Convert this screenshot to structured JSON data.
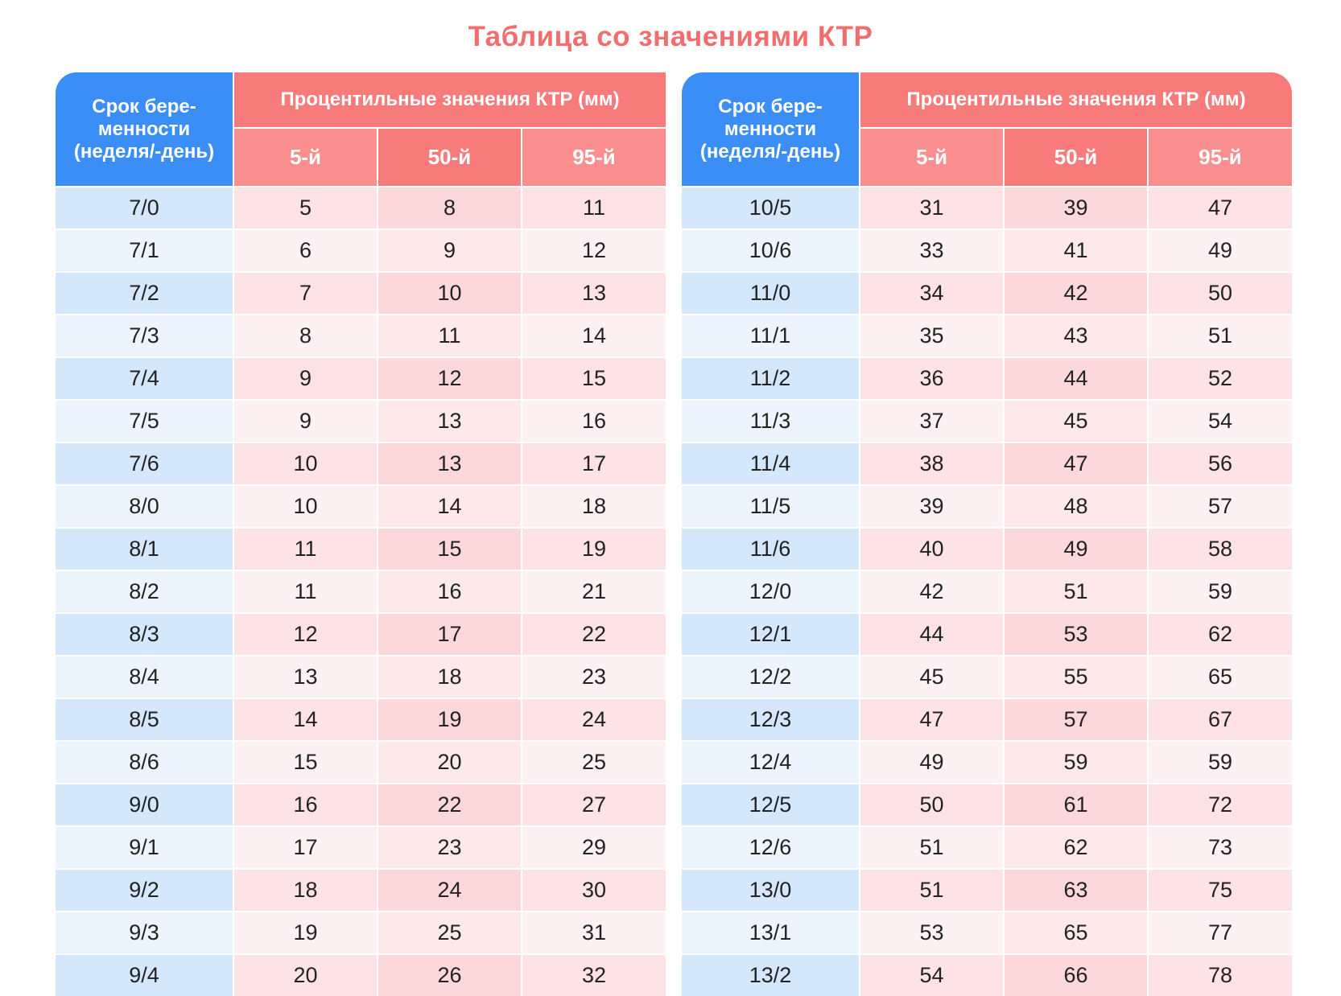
{
  "title": "Таблица со значениями КТР",
  "header": {
    "term": "Срок бере-менности (неделя/-день)",
    "percentiles": "Процентильные значения КТР (мм)",
    "p5": "5-й",
    "p50": "50-й",
    "p95": "95-й"
  },
  "colors": {
    "blue_header": "#3a8ef6",
    "red_header": "#f77b7b",
    "title": "#f26d6d"
  },
  "tables": [
    {
      "rows": [
        [
          "7/0",
          "5",
          "8",
          "11"
        ],
        [
          "7/1",
          "6",
          "9",
          "12"
        ],
        [
          "7/2",
          "7",
          "10",
          "13"
        ],
        [
          "7/3",
          "8",
          "11",
          "14"
        ],
        [
          "7/4",
          "9",
          "12",
          "15"
        ],
        [
          "7/5",
          "9",
          "13",
          "16"
        ],
        [
          "7/6",
          "10",
          "13",
          "17"
        ],
        [
          "8/0",
          "10",
          "14",
          "18"
        ],
        [
          "8/1",
          "11",
          "15",
          "19"
        ],
        [
          "8/2",
          "11",
          "16",
          "21"
        ],
        [
          "8/3",
          "12",
          "17",
          "22"
        ],
        [
          "8/4",
          "13",
          "18",
          "23"
        ],
        [
          "8/5",
          "14",
          "19",
          "24"
        ],
        [
          "8/6",
          "15",
          "20",
          "25"
        ],
        [
          "9/0",
          "16",
          "22",
          "27"
        ],
        [
          "9/1",
          "17",
          "23",
          "29"
        ],
        [
          "9/2",
          "18",
          "24",
          "30"
        ],
        [
          "9/3",
          "19",
          "25",
          "31"
        ],
        [
          "9/4",
          "20",
          "26",
          "32"
        ]
      ]
    },
    {
      "rows": [
        [
          "10/5",
          "31",
          "39",
          "47"
        ],
        [
          "10/6",
          "33",
          "41",
          "49"
        ],
        [
          "11/0",
          "34",
          "42",
          "50"
        ],
        [
          "11/1",
          "35",
          "43",
          "51"
        ],
        [
          "11/2",
          "36",
          "44",
          "52"
        ],
        [
          "11/3",
          "37",
          "45",
          "54"
        ],
        [
          "11/4",
          "38",
          "47",
          "56"
        ],
        [
          "11/5",
          "39",
          "48",
          "57"
        ],
        [
          "11/6",
          "40",
          "49",
          "58"
        ],
        [
          "12/0",
          "42",
          "51",
          "59"
        ],
        [
          "12/1",
          "44",
          "53",
          "62"
        ],
        [
          "12/2",
          "45",
          "55",
          "65"
        ],
        [
          "12/3",
          "47",
          "57",
          "67"
        ],
        [
          "12/4",
          "49",
          "59",
          "59"
        ],
        [
          "12/5",
          "50",
          "61",
          "72"
        ],
        [
          "12/6",
          "51",
          "62",
          "73"
        ],
        [
          "13/0",
          "51",
          "63",
          "75"
        ],
        [
          "13/1",
          "53",
          "65",
          "77"
        ],
        [
          "13/2",
          "54",
          "66",
          "78"
        ]
      ]
    }
  ]
}
